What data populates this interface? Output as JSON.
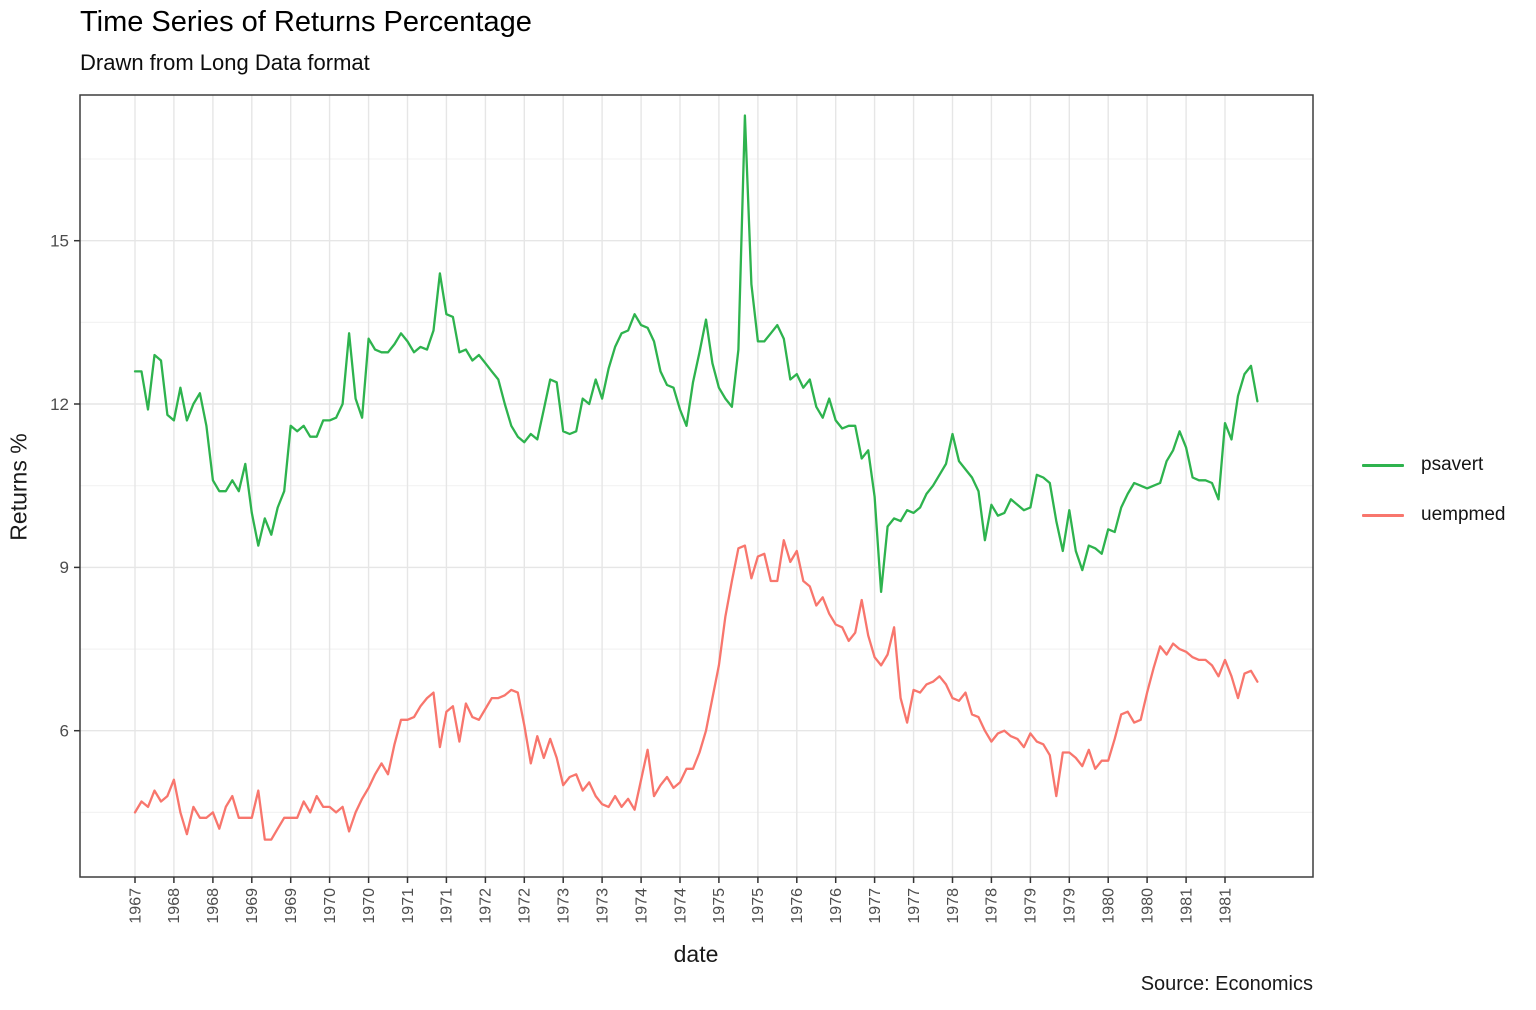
{
  "header": {
    "title": "Time Series of Returns Percentage",
    "subtitle": "Drawn from Long Data format"
  },
  "caption": "Source: Economics",
  "axes": {
    "x_title": "date",
    "y_title": "Returns %",
    "y_tick_values": [
      15,
      12,
      9,
      6
    ],
    "y_minor_values": [
      16.5,
      13.5,
      10.5,
      7.5,
      4.5
    ],
    "x_tick_labels": [
      "1967",
      "1968",
      "1968",
      "1969",
      "1969",
      "1970",
      "1970",
      "1971",
      "1971",
      "1972",
      "1972",
      "1973",
      "1973",
      "1974",
      "1974",
      "1975",
      "1975",
      "1976",
      "1976",
      "1977",
      "1977",
      "1978",
      "1978",
      "1979",
      "1979",
      "1980",
      "1980",
      "1981",
      "1981"
    ]
  },
  "legend": {
    "items": [
      {
        "label": "psavert",
        "color": "#2eb34e"
      },
      {
        "label": "uempmed",
        "color": "#f8766d"
      }
    ]
  },
  "chart_data": {
    "type": "line",
    "title": "Time Series of Returns Percentage",
    "subtitle": "Drawn from Long Data format",
    "caption": "Source: Economics",
    "xlabel": "date",
    "ylabel": "Returns %",
    "x_start_month": "1967-07",
    "x_end_month": "1981-12",
    "frequency": "monthly",
    "x_tick_interval_months": 6,
    "y_ticks": [
      6,
      9,
      12,
      15
    ],
    "ylim_approx": [
      3.3,
      17.7
    ],
    "grid": "major and minor, light gray on white, panel border",
    "legend_position": "right",
    "series": [
      {
        "name": "psavert",
        "color": "#2eb34e",
        "values": [
          12.6,
          12.6,
          11.9,
          12.9,
          12.8,
          11.8,
          11.7,
          12.3,
          11.7,
          12.0,
          12.2,
          11.6,
          10.6,
          10.4,
          10.4,
          10.6,
          10.4,
          10.9,
          10.0,
          9.4,
          9.9,
          9.6,
          10.1,
          10.4,
          11.6,
          11.5,
          11.6,
          11.4,
          11.4,
          11.7,
          11.7,
          11.75,
          12.0,
          13.3,
          12.1,
          11.75,
          13.2,
          13.0,
          12.95,
          12.95,
          13.1,
          13.3,
          13.15,
          12.95,
          13.05,
          13.0,
          13.35,
          14.4,
          13.65,
          13.6,
          12.95,
          13.0,
          12.8,
          12.9,
          12.75,
          12.6,
          12.45,
          12.0,
          11.6,
          11.4,
          11.3,
          11.45,
          11.35,
          11.9,
          12.45,
          12.4,
          11.5,
          11.45,
          11.5,
          12.1,
          12.0,
          12.45,
          12.1,
          12.65,
          13.05,
          13.3,
          13.35,
          13.65,
          13.45,
          13.4,
          13.15,
          12.6,
          12.35,
          12.3,
          11.9,
          11.6,
          12.4,
          12.95,
          13.55,
          12.75,
          12.3,
          12.1,
          11.95,
          13.0,
          17.3,
          14.2,
          13.15,
          13.15,
          13.3,
          13.45,
          13.2,
          12.45,
          12.55,
          12.3,
          12.45,
          11.95,
          11.75,
          12.1,
          11.7,
          11.55,
          11.6,
          11.6,
          11.0,
          11.15,
          10.3,
          8.55,
          9.75,
          9.9,
          9.85,
          10.05,
          10.0,
          10.1,
          10.35,
          10.5,
          10.7,
          10.9,
          11.45,
          10.95,
          10.8,
          10.65,
          10.4,
          9.5,
          10.15,
          9.95,
          10.0,
          10.25,
          10.15,
          10.05,
          10.1,
          10.7,
          10.65,
          10.55,
          9.85,
          9.3,
          10.05,
          9.3,
          8.95,
          9.4,
          9.35,
          9.25,
          9.7,
          9.65,
          10.1,
          10.35,
          10.55,
          10.5,
          10.45,
          10.5,
          10.55,
          10.95,
          11.15,
          11.5,
          11.2,
          10.65,
          10.6,
          10.6,
          10.55,
          10.25,
          11.65,
          11.35,
          12.15,
          12.55,
          12.7,
          12.05
        ]
      },
      {
        "name": "uempmed",
        "color": "#f8766d",
        "values": [
          4.5,
          4.7,
          4.6,
          4.9,
          4.7,
          4.8,
          5.1,
          4.5,
          4.1,
          4.6,
          4.4,
          4.4,
          4.5,
          4.2,
          4.6,
          4.8,
          4.4,
          4.4,
          4.4,
          4.9,
          4.0,
          4.0,
          4.2,
          4.4,
          4.4,
          4.4,
          4.7,
          4.5,
          4.8,
          4.6,
          4.6,
          4.5,
          4.6,
          4.15,
          4.5,
          4.75,
          4.95,
          5.2,
          5.4,
          5.2,
          5.75,
          6.2,
          6.2,
          6.25,
          6.45,
          6.6,
          6.7,
          5.7,
          6.35,
          6.45,
          5.8,
          6.5,
          6.25,
          6.2,
          6.4,
          6.6,
          6.6,
          6.65,
          6.75,
          6.7,
          6.1,
          5.4,
          5.9,
          5.5,
          5.85,
          5.5,
          5.0,
          5.15,
          5.2,
          4.9,
          5.05,
          4.8,
          4.65,
          4.6,
          4.8,
          4.6,
          4.75,
          4.55,
          5.1,
          5.65,
          4.8,
          5.0,
          5.15,
          4.95,
          5.05,
          5.3,
          5.3,
          5.6,
          6.0,
          6.6,
          7.2,
          8.1,
          8.75,
          9.35,
          9.4,
          8.8,
          9.2,
          9.25,
          8.75,
          8.75,
          9.5,
          9.1,
          9.3,
          8.75,
          8.65,
          8.3,
          8.45,
          8.15,
          7.95,
          7.9,
          7.65,
          7.8,
          8.4,
          7.75,
          7.35,
          7.2,
          7.4,
          7.9,
          6.6,
          6.15,
          6.75,
          6.7,
          6.85,
          6.9,
          7.0,
          6.85,
          6.6,
          6.55,
          6.7,
          6.3,
          6.25,
          6.0,
          5.8,
          5.95,
          6.0,
          5.9,
          5.85,
          5.7,
          5.95,
          5.8,
          5.75,
          5.55,
          4.8,
          5.6,
          5.6,
          5.5,
          5.35,
          5.65,
          5.3,
          5.45,
          5.45,
          5.85,
          6.3,
          6.35,
          6.15,
          6.2,
          6.7,
          7.15,
          7.55,
          7.4,
          7.6,
          7.5,
          7.45,
          7.35,
          7.3,
          7.3,
          7.2,
          7.0,
          7.3,
          7.0,
          6.6,
          7.05,
          7.1,
          6.9
        ]
      }
    ]
  }
}
